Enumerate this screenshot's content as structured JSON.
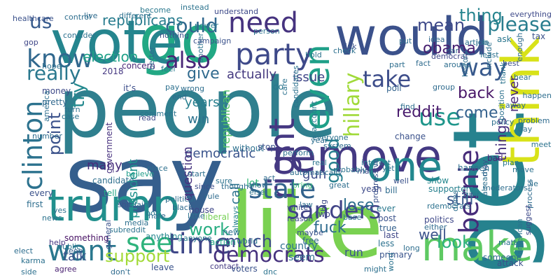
{
  "words": [
    {
      "text": "people",
      "color": "#2f7f8e"
    },
    {
      "text": "say",
      "color": "#355f8d"
    },
    {
      "text": "like",
      "color": "#7ad151"
    },
    {
      "text": "get",
      "color": "#26828e"
    },
    {
      "text": "would",
      "color": "#3b518b"
    },
    {
      "text": "go",
      "color": "#22a884"
    },
    {
      "text": "vote",
      "color": "#25858e"
    },
    {
      "text": "think",
      "color": "#d8e219"
    },
    {
      "text": "remove",
      "color": "#443983"
    },
    {
      "text": "trump",
      "color": "#21908d"
    },
    {
      "text": "make",
      "color": "#5ec962"
    },
    {
      "text": "one",
      "color": "#23888e"
    },
    {
      "text": "party",
      "color": "#3e4989"
    },
    {
      "text": "even",
      "color": "#1fa088"
    },
    {
      "text": "right",
      "color": "#453882"
    },
    {
      "text": "clinton",
      "color": "#2c728e"
    },
    {
      "text": "want",
      "color": "#2a788e"
    },
    {
      "text": "time",
      "color": "#3f4788"
    },
    {
      "text": "know",
      "color": "#31688e"
    },
    {
      "text": "state",
      "color": "#33638d"
    },
    {
      "text": "need",
      "color": "#46337f"
    },
    {
      "text": "bernie",
      "color": "#472c7a"
    },
    {
      "text": "sanders",
      "color": "#414487"
    },
    {
      "text": "see",
      "color": "#2eb37c"
    },
    {
      "text": "also",
      "color": "#482576"
    },
    {
      "text": "use",
      "color": "#1f968b"
    },
    {
      "text": "take",
      "color": "#3d4d8a"
    },
    {
      "text": "way",
      "color": "#38598c"
    },
    {
      "text": "democrats",
      "color": "#46327e"
    },
    {
      "text": "could",
      "color": "#31688e"
    },
    {
      "text": "really",
      "color": "#2a788e"
    },
    {
      "text": "us",
      "color": "#375b8d"
    },
    {
      "text": "please",
      "color": "#287d8e"
    },
    {
      "text": "mean",
      "color": "#3e4989"
    },
    {
      "text": "thing",
      "color": "#25848e"
    },
    {
      "text": "obama",
      "color": "#482071"
    },
    {
      "text": "republicans",
      "color": "#287c8e"
    },
    {
      "text": "election",
      "color": "#1fa188"
    },
    {
      "text": "give",
      "color": "#306a8e"
    },
    {
      "text": "actually",
      "color": "#44397f"
    },
    {
      "text": "hillary",
      "color": "#a0da39"
    },
    {
      "text": "good",
      "color": "#277f8e"
    },
    {
      "text": "point",
      "color": "#3b528b"
    },
    {
      "text": "try",
      "color": "#23898e"
    },
    {
      "text": "back",
      "color": "#481668"
    },
    {
      "text": "reddit",
      "color": "#481b6d"
    },
    {
      "text": "come",
      "color": "#34618d"
    },
    {
      "text": "things",
      "color": "#46307e"
    },
    {
      "text": "never",
      "color": "#482979"
    },
    {
      "text": "support",
      "color": "#a2da37"
    },
    {
      "text": "work",
      "color": "#27ad81"
    },
    {
      "text": "much",
      "color": "#3e4a89"
    },
    {
      "text": "look",
      "color": "#2db27d"
    },
    {
      "text": "still",
      "color": "#38598c"
    },
    {
      "text": "well",
      "color": "#3b528b"
    },
    {
      "text": "lose",
      "color": "#2e6e8e"
    },
    {
      "text": "fuck",
      "color": "#2f6c8e"
    },
    {
      "text": "issue",
      "color": "#404688"
    },
    {
      "text": "years",
      "color": "#277f8e"
    },
    {
      "text": "win",
      "color": "#2c728e"
    },
    {
      "text": "many",
      "color": "#472d7b"
    },
    {
      "text": "democratic",
      "color": "#3a548c"
    },
    {
      "text": "president",
      "color": "#20928c"
    },
    {
      "text": "question",
      "color": "#46337f"
    },
    {
      "text": "call",
      "color": "#2c738e"
    },
    {
      "text": "gun",
      "color": "#3d4d8a"
    },
    {
      "text": "republican",
      "color": "#56c667"
    },
    {
      "text": "talk",
      "color": "#3b528b"
    },
    {
      "text": "run",
      "color": "#3a548c"
    },
    {
      "text": "2018",
      "color": "#453781"
    },
    {
      "text": "concern",
      "color": "#482475"
    },
    {
      "text": "money",
      "color": "#3e4a89"
    },
    {
      "text": "pretty",
      "color": "#31688e"
    },
    {
      "text": "government",
      "color": "#46307e"
    },
    {
      "text": "candidate",
      "color": "#2e6f8e"
    },
    {
      "text": "it’s",
      "color": "#3d4e8a"
    },
    {
      "text": "comment",
      "color": "#2b748e"
    },
    {
      "text": "believe",
      "color": "#1e9c89"
    },
    {
      "text": "tell",
      "color": "#22a785"
    },
    {
      "text": "something",
      "color": "#471164"
    },
    {
      "text": "anything",
      "color": "#24868e"
    },
    {
      "text": "anyone",
      "color": "#29798e"
    },
    {
      "text": "help",
      "color": "#453882"
    },
    {
      "text": "keep",
      "color": "#35608d"
    },
    {
      "text": "agree",
      "color": "#481f70"
    },
    {
      "text": "leave",
      "color": "#3a538b"
    },
    {
      "text": "contact",
      "color": "#443a83"
    },
    {
      "text": "voters",
      "color": "#3b528b"
    },
    {
      "text": "new",
      "color": "#2d718e"
    },
    {
      "text": "action",
      "color": "#21a585"
    },
    {
      "text": "country",
      "color": "#2e6f8e"
    },
    {
      "text": "seem",
      "color": "#2e6e8e"
    },
    {
      "text": "lot",
      "color": "#35b779"
    },
    {
      "text": "without",
      "color": "#2d708e"
    },
    {
      "text": "stop",
      "color": "#3b518b"
    },
    {
      "text": "poll",
      "color": "#33638d"
    },
    {
      "text": "change",
      "color": "#3b528b"
    },
    {
      "text": "happen",
      "color": "#2e6e8e"
    },
    {
      "text": "supporters",
      "color": "#27808e"
    },
    {
      "text": "show",
      "color": "#24878e"
    },
    {
      "text": "politics",
      "color": "#3f4889"
    },
    {
      "text": "primary",
      "color": "#3a548c"
    },
    {
      "text": "someone",
      "color": "#2f6b8e"
    },
    {
      "text": "attack",
      "color": "#3b528b"
    },
    {
      "text": "matter",
      "color": "#2c718e"
    },
    {
      "text": "bad",
      "color": "#482878"
    },
    {
      "text": "guy",
      "color": "#2c738e"
    },
    {
      "text": "post",
      "color": "#3b528b"
    },
    {
      "text": "ever",
      "color": "#2a788e"
    },
    {
      "text": "true",
      "color": "#34608d"
    },
    {
      "text": "less",
      "color": "#2c718e"
    },
    {
      "text": "last",
      "color": "#3f4788"
    },
    {
      "text": "bill",
      "color": "#2f6b8e"
    },
    {
      "text": "yeah",
      "color": "#3e4a89"
    },
    {
      "text": "ask",
      "color": "#2a768e"
    },
    {
      "text": "tax",
      "color": "#3b528b"
    },
    {
      "text": "job",
      "color": "#2d708e"
    },
    {
      "text": "least",
      "color": "#2c728e"
    },
    {
      "text": "best",
      "color": "#3d4e8a"
    },
    {
      "text": "hear",
      "color": "#2b748e"
    },
    {
      "text": "happen",
      "color": "#2e6e8e"
    },
    {
      "text": "care",
      "color": "#2c728e"
    },
    {
      "text": "do",
      "color": "#2a778e"
    },
    {
      "text": "house",
      "color": "#3f4788"
    },
    {
      "text": "liberal",
      "color": "#75d054"
    },
    {
      "text": "media",
      "color": "#2d708e"
    },
    {
      "text": "news",
      "color": "#2c738e"
    },
    {
      "text": "first",
      "color": "#2e6e8e"
    },
    {
      "text": "every",
      "color": "#3b528b"
    },
    {
      "text": "since",
      "color": "#3d4e8a"
    },
    {
      "text": "rule",
      "color": "#2f6b8e"
    },
    {
      "text": "start",
      "color": "#2d708e"
    },
    {
      "text": "sure",
      "color": "#2c738e"
    },
    {
      "text": "though",
      "color": "#2e6e8e"
    },
    {
      "text": "bot",
      "color": "#2a788e"
    },
    {
      "text": "claim",
      "color": "#2e6e8e"
    },
    {
      "text": "hate",
      "color": "#2f6b8e"
    },
    {
      "text": "shit",
      "color": "#3b528b"
    },
    {
      "text": "yes",
      "color": "#2c718e"
    },
    {
      "text": "world",
      "color": "#2c738e"
    },
    {
      "text": "always",
      "color": "#26828e"
    },
    {
      "text": "free",
      "color": "#31688e"
    },
    {
      "text": "maybe",
      "color": "#3a548c"
    },
    {
      "text": "reason",
      "color": "#3e4a89"
    },
    {
      "text": "bring",
      "color": "#38b977"
    },
    {
      "text": "white",
      "color": "#3e4989"
    },
    {
      "text": "two",
      "color": "#3f4788"
    },
    {
      "text": "well",
      "color": "#3b528b"
    },
    {
      "text": "real",
      "color": "#2c738e"
    },
    {
      "text": "year",
      "color": "#2e6e8e"
    },
    {
      "text": "system",
      "color": "#2f6b8e"
    },
    {
      "text": "everyone",
      "color": "#2c718e"
    },
    {
      "text": "perform",
      "color": "#2d708e"
    },
    {
      "text": "interest",
      "color": "#2a768e"
    },
    {
      "text": "idea",
      "color": "#31688e"
    },
    {
      "text": "put",
      "color": "#2e6e8e"
    },
    {
      "text": "fact",
      "color": "#2f6b8e"
    },
    {
      "text": "part",
      "color": "#2e6e8e"
    },
    {
      "text": "hold",
      "color": "#2c738e"
    },
    {
      "text": "link",
      "color": "#3b528b"
    },
    {
      "text": "far",
      "color": "#2f6b8e"
    },
    {
      "text": "article",
      "color": "#2c718e"
    },
    {
      "text": "democrat",
      "color": "#3f4788"
    },
    {
      "text": "around",
      "color": "#2e6e8e"
    },
    {
      "text": "check",
      "color": "#2d708e"
    },
    {
      "text": "understand",
      "color": "#3e4a89"
    },
    {
      "text": "instead",
      "color": "#2c738e"
    },
    {
      "text": "become",
      "color": "#2a788e"
    },
    {
      "text": "control",
      "color": "#2e6e8e"
    },
    {
      "text": "live",
      "color": "#2f6b8e"
    },
    {
      "text": "different",
      "color": "#2d708e"
    },
    {
      "text": "healthcare",
      "color": "#3b528b"
    },
    {
      "text": "consider",
      "color": "#2c718e"
    },
    {
      "text": "gop",
      "color": "#3f4788"
    },
    {
      "text": "better",
      "color": "#2e6e8e"
    },
    {
      "text": "another",
      "color": "#2c738e"
    },
    {
      "text": "nothing",
      "color": "#3b528b"
    },
    {
      "text": "feel",
      "color": "#2a788e"
    },
    {
      "text": "pay",
      "color": "#2d708e"
    },
    {
      "text": "end",
      "color": "#2f6b8e"
    },
    {
      "text": "wrong",
      "color": "#2e6e8e"
    },
    {
      "text": "read",
      "color": "#3e4a89"
    },
    {
      "text": "turn",
      "color": "#2c718e"
    },
    {
      "text": "case",
      "color": "#2c738e"
    },
    {
      "text": "hope",
      "color": "#2d708e"
    },
    {
      "text": "number",
      "color": "#2f6b8e"
    },
    {
      "text": "america",
      "color": "#2e6e8e"
    },
    {
      "text": "campaign",
      "color": "#3b528b"
    },
    {
      "text": "power",
      "color": "#2a788e"
    },
    {
      "text": "person",
      "color": "#2c718e"
    },
    {
      "text": "include",
      "color": "#2d708e"
    },
    {
      "text": "history",
      "color": "#2e6e8e"
    },
    {
      "text": "thank",
      "color": "#2c738e"
    },
    {
      "text": "enough",
      "color": "#2f6b8e"
    },
    {
      "text": "everything",
      "color": "#3e4a89"
    },
    {
      "text": "away",
      "color": "#2e6e8e"
    },
    {
      "text": "position",
      "color": "#2c718e"
    },
    {
      "text": "policy",
      "color": "#2d708e"
    },
    {
      "text": "problem",
      "color": "#2f6b8e"
    },
    {
      "text": "day",
      "color": "#2e6e8e"
    },
    {
      "text": "meet",
      "color": "#2c738e"
    },
    {
      "text": "may",
      "color": "#3b528b"
    },
    {
      "text": "plan",
      "color": "#2a788e"
    },
    {
      "text": "move",
      "color": "#2c718e"
    },
    {
      "text": "lie",
      "color": "#2d708e"
    },
    {
      "text": "dems",
      "color": "#2e6e8e"
    },
    {
      "text": "process",
      "color": "#2f6b8e"
    },
    {
      "text": "suggest",
      "color": "#3e4a89"
    },
    {
      "text": "american",
      "color": "#2c738e"
    },
    {
      "text": "already",
      "color": "#2d708e"
    },
    {
      "text": "moderators",
      "color": "#2e6e8e"
    },
    {
      "text": "rdemocrats",
      "color": "#2c718e"
    },
    {
      "text": "either",
      "color": "#2f6b8e"
    },
    {
      "text": "long",
      "color": "#2e6e8e"
    },
    {
      "text": "word",
      "color": "#2c738e"
    },
    {
      "text": "might",
      "color": "#2d708e"
    },
    {
      "text": "progressive",
      "color": "#3b528b"
    },
    {
      "text": "account",
      "color": "#2a788e"
    },
    {
      "text": "candidates",
      "color": "#2c718e"
    },
    {
      "text": "automatically",
      "color": "#2e6e8e"
    },
    {
      "text": "allow",
      "color": "#2d708e"
    },
    {
      "text": "act",
      "color": "#2f6b8e"
    },
    {
      "text": "else",
      "color": "#2c738e"
    },
    {
      "text": "great",
      "color": "#2e6e8e"
    },
    {
      "text": "man",
      "color": "#3e4a89"
    },
    {
      "text": "yet",
      "color": "#2c718e"
    },
    {
      "text": "little",
      "color": "#2d708e"
    },
    {
      "text": "black",
      "color": "#2f6b8e"
    },
    {
      "text": "political",
      "color": "#2e6e8e"
    },
    {
      "text": "subreddit",
      "color": "#2c738e"
    },
    {
      "text": "general",
      "color": "#3b528b"
    },
    {
      "text": "public",
      "color": "#2a788e"
    },
    {
      "text": "karma",
      "color": "#2c718e"
    },
    {
      "text": "side",
      "color": "#2d708e"
    },
    {
      "text": "elect",
      "color": "#2e6e8e"
    },
    {
      "text": "don't",
      "color": "#2f6b8e"
    },
    {
      "text": "dnc",
      "color": "#2c738e"
    },
    {
      "text": "law",
      "color": "#2e6e8e"
    },
    {
      "text": "big",
      "color": "#3e4a89"
    },
    {
      "text": "probably",
      "color": "#2c718e"
    },
    {
      "text": "place",
      "color": "#2d708e"
    },
    {
      "text": "group",
      "color": "#2f6b8e"
    },
    {
      "text": "find",
      "color": "#2e6e8e"
    },
    {
      "text": "base",
      "color": "#2c738e"
    },
    {
      "text": "ban",
      "color": "#3b528b"
    }
  ]
}
